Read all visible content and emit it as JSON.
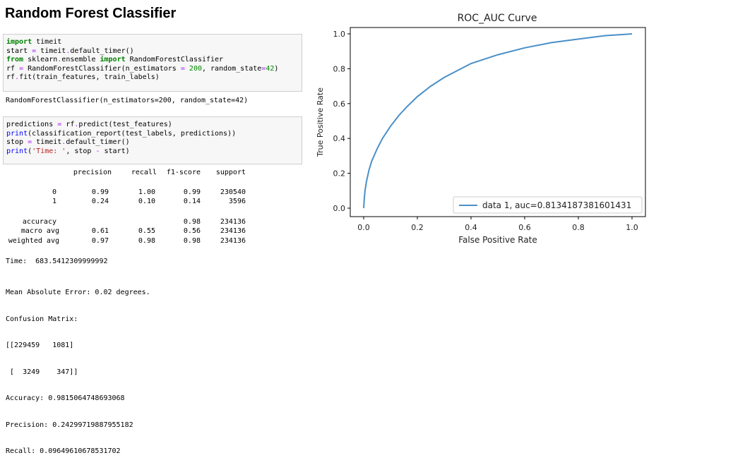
{
  "heading": "Random Forest Classifier",
  "cell1": {
    "lines": [
      [
        [
          "kw",
          "import"
        ],
        [
          "t",
          " timeit"
        ]
      ],
      [
        [
          "t",
          "start "
        ],
        [
          "op",
          "="
        ],
        [
          "t",
          " timeit"
        ],
        [
          "op",
          "."
        ],
        [
          "t",
          "default_timer()"
        ]
      ],
      [
        [
          "kw",
          "from"
        ],
        [
          "t",
          " sklearn"
        ],
        [
          "op",
          "."
        ],
        [
          "t",
          "ensemble "
        ],
        [
          "kw",
          "import"
        ],
        [
          "t",
          " RandomForestClassifier"
        ]
      ],
      [
        [
          "t",
          "rf "
        ],
        [
          "op",
          "="
        ],
        [
          "t",
          " RandomForestClassifier(n_estimators "
        ],
        [
          "op",
          "="
        ],
        [
          "t",
          " "
        ],
        [
          "num",
          "200"
        ],
        [
          "t",
          ", random_state"
        ],
        [
          "op",
          "="
        ],
        [
          "num",
          "42"
        ],
        [
          "t",
          ")"
        ]
      ],
      [
        [
          "t",
          "rf"
        ],
        [
          "op",
          "."
        ],
        [
          "t",
          "fit(train_features, train_labels)"
        ]
      ]
    ]
  },
  "out1": "RandomForestClassifier(n_estimators=200, random_state=42)",
  "cell2": {
    "lines": [
      [
        [
          "t",
          "predictions "
        ],
        [
          "op",
          "="
        ],
        [
          "t",
          " rf"
        ],
        [
          "op",
          "."
        ],
        [
          "t",
          "predict(test_features)"
        ]
      ],
      [
        [
          "fn",
          "print"
        ],
        [
          "t",
          "(classification_report(test_labels, predictions))"
        ]
      ],
      [
        [
          "t",
          "stop "
        ],
        [
          "op",
          "="
        ],
        [
          "t",
          " timeit"
        ],
        [
          "op",
          "."
        ],
        [
          "t",
          "default_timer()"
        ]
      ],
      [
        [
          "fn",
          "print"
        ],
        [
          "t",
          "("
        ],
        [
          "str",
          "'Time: '"
        ],
        [
          "t",
          ", stop "
        ],
        [
          "op",
          "-"
        ],
        [
          "t",
          " start)"
        ]
      ]
    ]
  },
  "report": {
    "headers": [
      "precision",
      "recall",
      "f1-score",
      "support"
    ],
    "rows": [
      {
        "label": "0",
        "values": [
          "0.99",
          "1.00",
          "0.99",
          "230540"
        ]
      },
      {
        "label": "1",
        "values": [
          "0.24",
          "0.10",
          "0.14",
          "3596"
        ]
      },
      {
        "label": "accuracy",
        "values": [
          "",
          "",
          "0.98",
          "234136"
        ]
      },
      {
        "label": "macro avg",
        "values": [
          "0.61",
          "0.55",
          "0.56",
          "234136"
        ]
      },
      {
        "label": "weighted avg",
        "values": [
          "0.97",
          "0.98",
          "0.98",
          "234136"
        ]
      }
    ]
  },
  "time_line": "Time:  683.5412309999992",
  "metrics_lines": [
    "Mean Absolute Error: 0.02 degrees.",
    "Confusion Matrix:",
    "[[229459   1081]",
    " [  3249    347]]",
    "Accuracy: 0.9815064748693068",
    "Precision: 0.24299719887955182",
    "Recall: 0.09649610678531702"
  ],
  "chart_data": {
    "type": "line",
    "title": "ROC_AUC Curve",
    "xlabel": "False Positive Rate",
    "ylabel": "True Positive Rate",
    "xlim": [
      0.0,
      1.0
    ],
    "ylim": [
      0.0,
      1.0
    ],
    "xticks": [
      "0.0",
      "0.2",
      "0.4",
      "0.6",
      "0.8",
      "1.0"
    ],
    "yticks": [
      "0.0",
      "0.2",
      "0.4",
      "0.6",
      "0.8",
      "1.0"
    ],
    "grid": false,
    "legend_position": "lower-right",
    "series": [
      {
        "name": "data 1, auc=0.8134187381601431",
        "color": "#4a8fc7",
        "x": [
          0.0,
          0.002,
          0.005,
          0.01,
          0.02,
          0.03,
          0.05,
          0.07,
          0.1,
          0.13,
          0.16,
          0.2,
          0.25,
          0.3,
          0.35,
          0.4,
          0.5,
          0.6,
          0.7,
          0.8,
          0.9,
          1.0
        ],
        "y": [
          0.0,
          0.05,
          0.1,
          0.15,
          0.22,
          0.27,
          0.34,
          0.4,
          0.47,
          0.53,
          0.58,
          0.64,
          0.7,
          0.75,
          0.79,
          0.83,
          0.88,
          0.92,
          0.95,
          0.97,
          0.99,
          1.0
        ]
      }
    ]
  }
}
